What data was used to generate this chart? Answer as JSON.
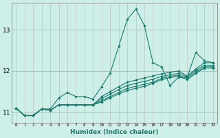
{
  "xlabel": "Humidex (Indice chaleur)",
  "ylabel": "",
  "bg_color": "#ceeee8",
  "grid_color": "#b8b8b8",
  "line_color": "#1a7a6e",
  "xlim": [
    -0.5,
    23.5
  ],
  "ylim": [
    10.75,
    13.65
  ],
  "yticks": [
    11,
    12,
    13
  ],
  "xticks": [
    0,
    1,
    2,
    3,
    4,
    5,
    6,
    7,
    8,
    9,
    10,
    11,
    12,
    13,
    14,
    15,
    16,
    17,
    18,
    19,
    20,
    21,
    22,
    23
  ],
  "series": [
    [
      11.1,
      10.92,
      10.92,
      11.08,
      11.08,
      11.35,
      11.48,
      11.38,
      11.38,
      11.32,
      11.62,
      11.95,
      12.6,
      13.25,
      13.5,
      13.1,
      12.2,
      12.1,
      11.65,
      11.85,
      11.85,
      12.45,
      12.25,
      12.2
    ],
    [
      11.1,
      10.92,
      10.92,
      11.08,
      11.05,
      11.18,
      11.18,
      11.18,
      11.18,
      11.18,
      11.38,
      11.5,
      11.62,
      11.73,
      11.78,
      11.83,
      11.88,
      11.93,
      11.97,
      12.0,
      11.88,
      12.05,
      12.2,
      12.2
    ],
    [
      11.1,
      10.92,
      10.92,
      11.08,
      11.05,
      11.18,
      11.18,
      11.18,
      11.18,
      11.18,
      11.33,
      11.44,
      11.55,
      11.65,
      11.7,
      11.75,
      11.8,
      11.87,
      11.91,
      11.94,
      11.86,
      12.01,
      12.14,
      12.14
    ],
    [
      11.1,
      10.92,
      10.92,
      11.08,
      11.05,
      11.18,
      11.18,
      11.18,
      11.18,
      11.18,
      11.28,
      11.38,
      11.48,
      11.58,
      11.63,
      11.68,
      11.73,
      11.82,
      11.87,
      11.9,
      11.82,
      11.97,
      12.1,
      12.1
    ],
    [
      11.1,
      10.92,
      10.92,
      11.08,
      11.05,
      11.18,
      11.18,
      11.18,
      11.18,
      11.18,
      11.25,
      11.35,
      11.44,
      11.53,
      11.58,
      11.63,
      11.7,
      11.79,
      11.84,
      11.87,
      11.79,
      11.94,
      12.07,
      12.07
    ]
  ]
}
